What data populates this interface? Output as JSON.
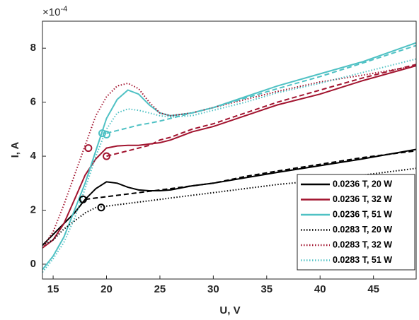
{
  "chart_data": {
    "type": "line",
    "xlabel": "U, V",
    "ylabel": "I, A",
    "y_multiplier": {
      "base": "×10",
      "exponent": "-4"
    },
    "x": [
      14,
      15,
      16,
      17,
      18,
      19,
      20,
      21,
      22,
      23,
      24,
      25,
      26,
      28,
      30,
      33,
      36,
      40,
      44,
      49
    ],
    "xlim": [
      14,
      49
    ],
    "xticks": [
      15,
      20,
      25,
      30,
      35,
      40,
      45
    ],
    "ylim": [
      -0.55,
      9.0
    ],
    "yticks": [
      0,
      2,
      4,
      6,
      8
    ],
    "legend": "lower right",
    "series": [
      {
        "name": "0.0236 T, 20 W",
        "color": "#000000",
        "style": "solid",
        "values": [
          0.7,
          1.1,
          1.5,
          1.9,
          2.4,
          2.8,
          3.05,
          3.0,
          2.85,
          2.75,
          2.72,
          2.72,
          2.75,
          2.9,
          3.0,
          3.2,
          3.4,
          3.65,
          3.9,
          4.25
        ]
      },
      {
        "name": "0.0236 T, 32 W",
        "color": "#a2142f",
        "style": "solid",
        "values": [
          0.6,
          0.9,
          1.5,
          2.4,
          3.3,
          3.9,
          4.3,
          4.38,
          4.4,
          4.4,
          4.45,
          4.5,
          4.6,
          4.9,
          5.1,
          5.5,
          5.9,
          6.3,
          6.8,
          7.35
        ]
      },
      {
        "name": "0.0236 T, 51 W",
        "color": "#4fc1c4",
        "style": "solid",
        "values": [
          -0.2,
          0.3,
          1.0,
          2.0,
          3.0,
          4.2,
          5.4,
          6.1,
          6.45,
          6.3,
          5.9,
          5.6,
          5.5,
          5.6,
          5.8,
          6.2,
          6.6,
          7.05,
          7.5,
          8.2
        ]
      },
      {
        "name": "0.0283 T, 20 W",
        "color": "#000000",
        "style": "dotted",
        "values": [
          0.7,
          0.9,
          1.3,
          1.6,
          1.9,
          2.1,
          2.15,
          2.2,
          2.25,
          2.3,
          2.35,
          2.4,
          2.45,
          2.55,
          2.65,
          2.8,
          2.95,
          3.1,
          3.3,
          3.55
        ]
      },
      {
        "name": "0.0283 T, 32 W",
        "color": "#a2142f",
        "style": "dotted",
        "values": [
          0.6,
          1.2,
          2.2,
          3.3,
          4.4,
          5.5,
          6.2,
          6.6,
          6.7,
          6.5,
          6.0,
          5.6,
          5.5,
          5.6,
          5.8,
          6.1,
          6.4,
          6.75,
          7.0,
          7.35
        ]
      },
      {
        "name": "0.0283 T, 51 W",
        "color": "#4fc1c4",
        "style": "dotted",
        "values": [
          -0.3,
          0.2,
          0.8,
          1.7,
          2.8,
          4.0,
          5.0,
          5.6,
          5.75,
          5.7,
          5.6,
          5.5,
          5.45,
          5.5,
          5.7,
          6.0,
          6.35,
          6.7,
          7.1,
          7.6
        ]
      },
      {
        "color": "#000000",
        "style": "dashed",
        "values": [
          null,
          null,
          null,
          null,
          2.4,
          2.45,
          2.5,
          2.55,
          2.6,
          2.65,
          2.7,
          2.75,
          2.8,
          2.9,
          3.0,
          3.25,
          3.45,
          3.7,
          3.95,
          4.2
        ]
      },
      {
        "color": "#a2142f",
        "style": "dashed",
        "values": [
          null,
          null,
          null,
          null,
          null,
          null,
          4.0,
          4.1,
          4.2,
          4.3,
          4.4,
          4.6,
          4.7,
          5.0,
          5.2,
          5.6,
          6.0,
          6.45,
          6.9,
          7.4
        ]
      },
      {
        "color": "#4fc1c4",
        "style": "dashed",
        "values": [
          null,
          null,
          null,
          null,
          null,
          null,
          4.85,
          4.95,
          5.05,
          5.15,
          5.22,
          5.3,
          5.4,
          5.6,
          5.8,
          6.15,
          6.5,
          6.95,
          7.45,
          8.1
        ]
      }
    ],
    "markers": [
      {
        "color": "#000000",
        "x": 17.8,
        "y": 2.4
      },
      {
        "color": "#000000",
        "x": 19.5,
        "y": 2.1
      },
      {
        "color": "#a2142f",
        "x": 18.3,
        "y": 4.3
      },
      {
        "color": "#a2142f",
        "x": 20.0,
        "y": 4.0
      },
      {
        "color": "#4fc1c4",
        "x": 19.6,
        "y": 4.85
      },
      {
        "color": "#4fc1c4",
        "x": 20.0,
        "y": 4.8
      }
    ]
  }
}
